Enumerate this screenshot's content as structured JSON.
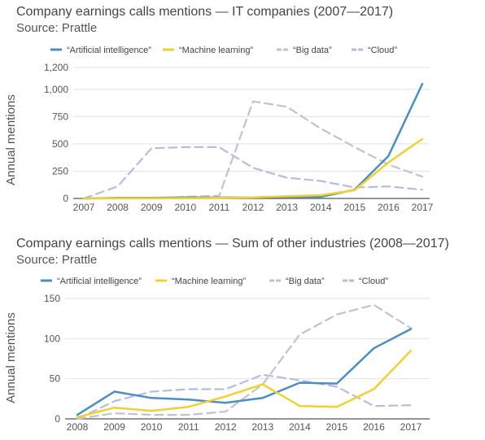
{
  "chart_data": [
    {
      "type": "line",
      "title": "Company earnings calls mentions — IT companies (2007—2017)",
      "subtitle": "Source: Prattle",
      "ylabel": "Annual mentions",
      "xlabel": "",
      "x": [
        "2007",
        "2008",
        "2009",
        "2010",
        "2011",
        "2012",
        "2013",
        "2014",
        "2015",
        "2016",
        "2017"
      ],
      "ylim": [
        0,
        1200
      ],
      "yticks": [
        0,
        250,
        500,
        750,
        "1,000",
        "1,200"
      ],
      "grid": true,
      "legend": "top",
      "series": [
        {
          "name": "“Artificial intelligence”",
          "color": "#4a8fc4",
          "dashed": false,
          "values": [
            0,
            5,
            5,
            10,
            8,
            10,
            15,
            15,
            80,
            390,
            1050
          ]
        },
        {
          "name": "“Machine learning”",
          "color": "#f2d12e",
          "dashed": false,
          "values": [
            0,
            2,
            2,
            3,
            5,
            10,
            20,
            30,
            75,
            330,
            545
          ]
        },
        {
          "name": "“Big data”",
          "color": "#c2c2cc",
          "dashed": true,
          "values": [
            0,
            0,
            0,
            15,
            25,
            890,
            840,
            640,
            470,
            310,
            200
          ]
        },
        {
          "name": "“Cloud”",
          "color": "#b3bde4",
          "dashed": true,
          "values": [
            0,
            110,
            460,
            470,
            470,
            280,
            190,
            160,
            100,
            110,
            80
          ]
        }
      ]
    },
    {
      "type": "line",
      "title": "Company earnings calls mentions — Sum of other industries (2008—2017)",
      "subtitle": "Source: Prattle",
      "ylabel": "Annual mentions",
      "xlabel": "",
      "x": [
        "2008",
        "2009",
        "2010",
        "2011",
        "2012",
        "2013",
        "2014",
        "2015",
        "2016",
        "2017"
      ],
      "ylim": [
        0,
        150
      ],
      "yticks": [
        0,
        50,
        100,
        150
      ],
      "grid": true,
      "legend": "top",
      "series": [
        {
          "name": "“Artificial intelligence”",
          "color": "#4a8fc4",
          "dashed": false,
          "values": [
            5,
            34,
            26,
            24,
            20,
            26,
            45,
            44,
            88,
            112
          ]
        },
        {
          "name": "“Machine learning”",
          "color": "#f2d12e",
          "dashed": false,
          "values": [
            2,
            14,
            10,
            15,
            28,
            43,
            16,
            15,
            37,
            85
          ]
        },
        {
          "name": "“Big data”",
          "color": "#c2c2cc",
          "dashed": true,
          "values": [
            0,
            7,
            5,
            5,
            9,
            43,
            105,
            130,
            142,
            113
          ]
        },
        {
          "name": "“Cloud”",
          "color": "#b3bde4",
          "dashed": true,
          "values": [
            0,
            22,
            34,
            37,
            37,
            55,
            48,
            40,
            16,
            17
          ]
        }
      ]
    }
  ]
}
